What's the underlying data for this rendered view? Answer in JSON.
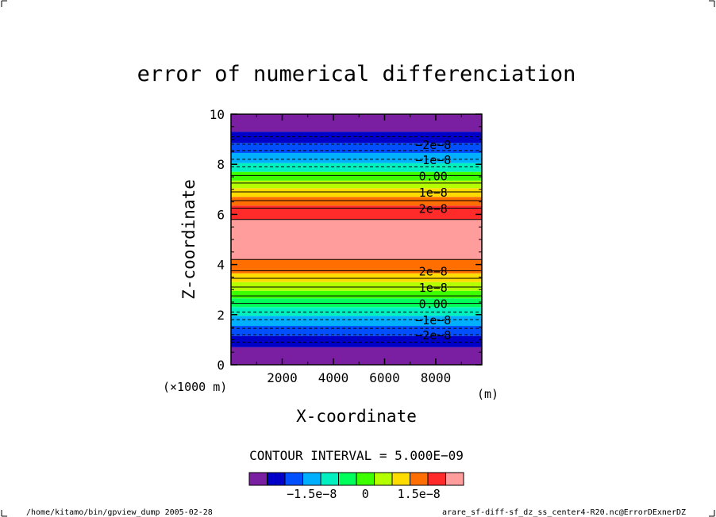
{
  "chart_data": {
    "type": "heatmap",
    "title": "error of numerical differenciation",
    "xlabel": "X-coordinate",
    "ylabel": "Z-coordinate",
    "x_scale_note": "(×1000 m)",
    "x_unit": "(m)",
    "xlim": [
      0,
      9800
    ],
    "ylim": [
      0,
      10
    ],
    "x_ticks": [
      {
        "value": 2000,
        "label": "2000"
      },
      {
        "value": 4000,
        "label": "4000"
      },
      {
        "value": 6000,
        "label": "6000"
      },
      {
        "value": 8000,
        "label": "8000"
      }
    ],
    "y_ticks": [
      {
        "value": 0,
        "label": "0"
      },
      {
        "value": 2,
        "label": "2"
      },
      {
        "value": 4,
        "label": "4"
      },
      {
        "value": 6,
        "label": "6"
      },
      {
        "value": 8,
        "label": "8"
      },
      {
        "value": 10,
        "label": "10"
      }
    ],
    "bands": [
      {
        "z0": 0.0,
        "z1": 0.7,
        "color": "#7b1fa2"
      },
      {
        "z0": 0.7,
        "z1": 1.15,
        "color": "#0000c8"
      },
      {
        "z0": 1.15,
        "z1": 1.55,
        "color": "#0050ff"
      },
      {
        "z0": 1.55,
        "z1": 1.95,
        "color": "#00b0ff"
      },
      {
        "z0": 1.95,
        "z1": 2.3,
        "color": "#00f0c0"
      },
      {
        "z0": 2.3,
        "z1": 2.65,
        "color": "#00ff5a"
      },
      {
        "z0": 2.65,
        "z1": 2.95,
        "color": "#3cff00"
      },
      {
        "z0": 2.95,
        "z1": 3.3,
        "color": "#b4ff00"
      },
      {
        "z0": 3.3,
        "z1": 3.65,
        "color": "#ffdc00"
      },
      {
        "z0": 3.65,
        "z1": 4.2,
        "color": "#ff6e00"
      },
      {
        "z0": 4.2,
        "z1": 5.8,
        "color": "#ff9c9c"
      },
      {
        "z0": 5.8,
        "z1": 6.35,
        "color": "#ff2a2a"
      },
      {
        "z0": 6.35,
        "z1": 6.7,
        "color": "#ff6e00"
      },
      {
        "z0": 6.7,
        "z1": 7.05,
        "color": "#ffdc00"
      },
      {
        "z0": 7.05,
        "z1": 7.35,
        "color": "#b4ff00"
      },
      {
        "z0": 7.35,
        "z1": 7.7,
        "color": "#3cff00"
      },
      {
        "z0": 7.7,
        "z1": 8.05,
        "color": "#00f0c0"
      },
      {
        "z0": 8.05,
        "z1": 8.45,
        "color": "#00b0ff"
      },
      {
        "z0": 8.45,
        "z1": 8.85,
        "color": "#0050ff"
      },
      {
        "z0": 8.85,
        "z1": 9.3,
        "color": "#0000c8"
      },
      {
        "z0": 9.3,
        "z1": 10.0,
        "color": "#7b1fa2"
      }
    ],
    "contours": [
      {
        "z": 0.9,
        "dashed": true,
        "label": ""
      },
      {
        "z": 1.2,
        "dashed": true,
        "label": "−2e−8"
      },
      {
        "z": 1.45,
        "dashed": true,
        "label": ""
      },
      {
        "z": 1.8,
        "dashed": true,
        "label": "−1e−8"
      },
      {
        "z": 2.1,
        "dashed": true,
        "label": ""
      },
      {
        "z": 2.45,
        "dashed": false,
        "label": "0.00"
      },
      {
        "z": 2.75,
        "dashed": false,
        "label": ""
      },
      {
        "z": 3.1,
        "dashed": false,
        "label": "1e−8"
      },
      {
        "z": 3.45,
        "dashed": false,
        "label": ""
      },
      {
        "z": 3.75,
        "dashed": false,
        "label": "2e−8"
      },
      {
        "z": 4.2,
        "dashed": false,
        "label": ""
      },
      {
        "z": 5.8,
        "dashed": false,
        "label": ""
      },
      {
        "z": 6.25,
        "dashed": false,
        "label": "2e−8"
      },
      {
        "z": 6.55,
        "dashed": false,
        "label": ""
      },
      {
        "z": 6.9,
        "dashed": false,
        "label": "1e−8"
      },
      {
        "z": 7.25,
        "dashed": false,
        "label": ""
      },
      {
        "z": 7.55,
        "dashed": false,
        "label": "0.00"
      },
      {
        "z": 7.9,
        "dashed": true,
        "label": ""
      },
      {
        "z": 8.2,
        "dashed": true,
        "label": "−1e−8"
      },
      {
        "z": 8.55,
        "dashed": true,
        "label": ""
      },
      {
        "z": 8.8,
        "dashed": true,
        "label": "−2e−8"
      },
      {
        "z": 9.1,
        "dashed": true,
        "label": ""
      }
    ],
    "contour_label_x": 7900,
    "contour_interval": "CONTOUR INTERVAL = 5.000E−09",
    "colorbar": {
      "colors": [
        "#7b1fa2",
        "#0000c8",
        "#0050ff",
        "#00b0ff",
        "#00f0c0",
        "#00ff5a",
        "#3cff00",
        "#b4ff00",
        "#ffdc00",
        "#ff6e00",
        "#ff2a2a",
        "#ff9c9c"
      ],
      "ticks": [
        {
          "index": 3,
          "label": "−1.5e−8"
        },
        {
          "index": 6,
          "label": "0"
        },
        {
          "index": 9,
          "label": "1.5e−8"
        }
      ]
    }
  },
  "footer": {
    "left": "/home/kitamo/bin/gpview_dump  2005-02-28",
    "right": "arare_sf-diff-sf_dz_ss_center4-R20.nc@ErrorDExnerDZ"
  }
}
